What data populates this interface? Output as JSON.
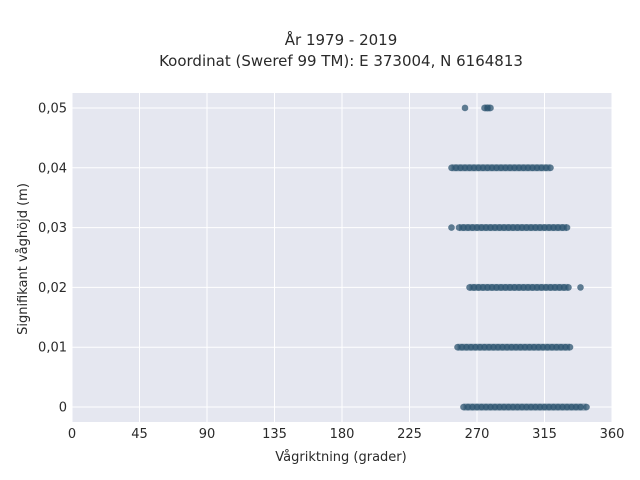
{
  "chart_data": {
    "type": "scatter",
    "title_line1": "År 1979 - 2019",
    "title_line2": "Koordinat (Sweref 99 TM): E 373004, N 6164813",
    "xlabel": "Vågriktning (grader)",
    "ylabel": "Signifikant våghöjd (m)",
    "xlim": [
      0,
      360
    ],
    "ylim": [
      -0.0025,
      0.0525
    ],
    "xticks": [
      0,
      45,
      90,
      135,
      180,
      225,
      270,
      315,
      360
    ],
    "xtick_labels": [
      "0",
      "45",
      "90",
      "135",
      "180",
      "225",
      "270",
      "315",
      "360"
    ],
    "yticks": [
      0,
      0.01,
      0.02,
      0.03,
      0.04,
      0.05
    ],
    "ytick_labels": [
      "0",
      "0,01",
      "0,02",
      "0,03",
      "0,04",
      "0,05"
    ],
    "grid": true,
    "marker_color": "#2c5470",
    "plot_background": "#e5e7f0",
    "series": [
      {
        "y": 0.05,
        "x": [
          262,
          275,
          277,
          279
        ]
      },
      {
        "y": 0.04,
        "x": [
          253,
          256,
          259,
          262,
          265,
          268,
          271,
          274,
          277,
          280,
          283,
          286,
          289,
          292,
          295,
          298,
          301,
          304,
          307,
          310,
          313,
          316,
          319
        ]
      },
      {
        "y": 0.03,
        "x": [
          253,
          258,
          261,
          264,
          267,
          270,
          273,
          276,
          279,
          282,
          285,
          288,
          291,
          294,
          297,
          300,
          303,
          306,
          309,
          312,
          315,
          318,
          321,
          324,
          327,
          330
        ]
      },
      {
        "y": 0.02,
        "x": [
          265,
          268,
          271,
          274,
          277,
          280,
          283,
          286,
          289,
          292,
          295,
          298,
          301,
          304,
          307,
          310,
          313,
          316,
          319,
          322,
          325,
          328,
          331,
          339
        ]
      },
      {
        "y": 0.01,
        "x": [
          257,
          260,
          263,
          266,
          269,
          272,
          275,
          278,
          281,
          284,
          287,
          290,
          293,
          296,
          299,
          302,
          305,
          308,
          311,
          314,
          317,
          320,
          323,
          326,
          329,
          332
        ]
      },
      {
        "y": 0,
        "x": [
          261,
          264,
          267,
          270,
          273,
          276,
          279,
          282,
          285,
          288,
          291,
          294,
          297,
          300,
          303,
          306,
          309,
          312,
          315,
          318,
          321,
          324,
          327,
          330,
          333,
          336,
          339,
          343
        ]
      }
    ]
  }
}
